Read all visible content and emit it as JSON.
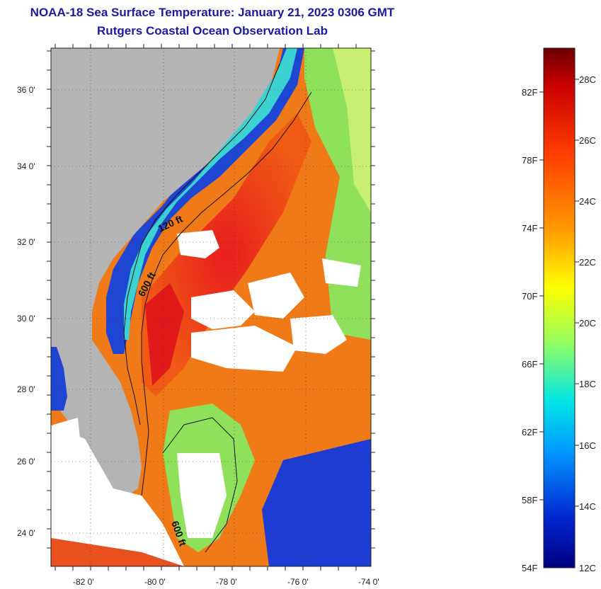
{
  "header": {
    "title_line1": "NOAA-18 Sea Surface Temperature:  January 21, 2023 0306 GMT",
    "title_line2": "Rutgers Coastal Ocean Observation Lab"
  },
  "map": {
    "lon_labels": [
      "-82 0'",
      "-80 0'",
      "-78 0'",
      "-76 0'",
      "-74 0'"
    ],
    "lat_labels": [
      "36 0'",
      "34 0'",
      "32 0'",
      "30 0'",
      "28 0'",
      "26 0'",
      "24 0'"
    ],
    "contour_labels": {
      "c120": "120 ft",
      "c600_north": "600 ft",
      "c600_south": "600 ft"
    },
    "colors": {
      "land": "#b4b4b4",
      "cloud": "#ffffff",
      "warm": "#f05a14",
      "hot": "#e81e1e",
      "cool": "#8fe05a",
      "cold": "#1e3cd2"
    }
  },
  "colorbar": {
    "fahrenheit_labels": [
      "82F",
      "78F",
      "74F",
      "70F",
      "66F",
      "62F",
      "58F",
      "54F"
    ],
    "celsius_labels": [
      "28C",
      "26C",
      "24C",
      "22C",
      "20C",
      "18C",
      "16C",
      "14C",
      "12C"
    ]
  }
}
